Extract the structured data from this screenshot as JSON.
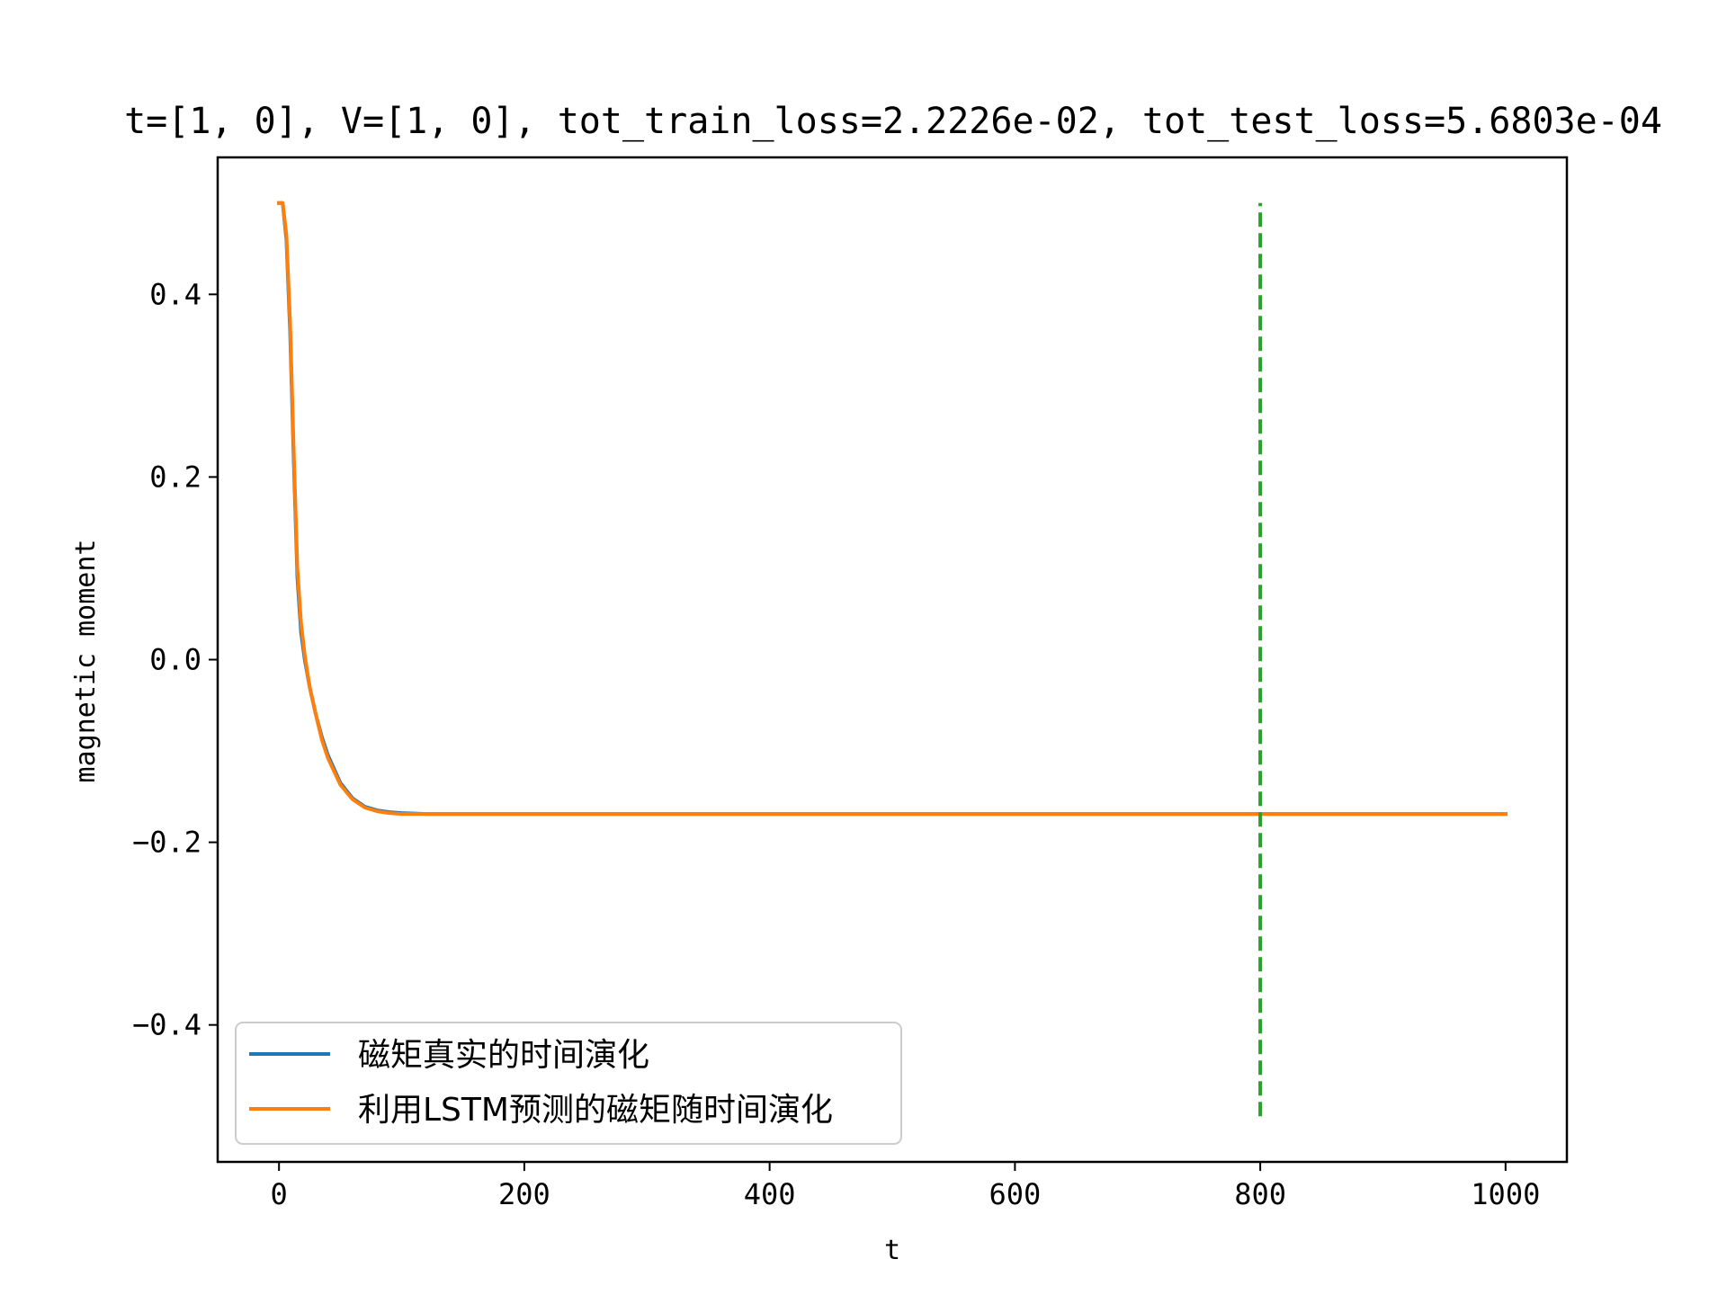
{
  "chart_data": {
    "type": "line",
    "title": "t=[1, 0], V=[1, 0], tot_train_loss=2.2226e-02, tot_test_loss=5.6803e-04",
    "xlabel": "t",
    "ylabel": "magnetic moment",
    "xlim": [
      -50,
      1050
    ],
    "ylim": [
      -0.55,
      0.55
    ],
    "xticks": [
      0,
      200,
      400,
      600,
      800,
      1000
    ],
    "yticks": [
      -0.4,
      -0.2,
      0.0,
      0.2,
      0.4
    ],
    "xtick_labels": [
      "0",
      "200",
      "400",
      "600",
      "800",
      "1000"
    ],
    "ytick_labels": [
      "−0.4",
      "−0.2",
      "0.0",
      "0.2",
      "0.4"
    ],
    "grid": false,
    "legend_position": "lower-left",
    "series": [
      {
        "name": "磁矩真实的时间演化",
        "color": "#1f77b4",
        "x": [
          0,
          3,
          6,
          9,
          12,
          15,
          18,
          21,
          25,
          30,
          35,
          40,
          50,
          60,
          70,
          80,
          90,
          100,
          120,
          150,
          200,
          300,
          500,
          800,
          1000
        ],
        "y": [
          0.5,
          0.5,
          0.46,
          0.36,
          0.22,
          0.09,
          0.03,
          0.0,
          -0.03,
          -0.06,
          -0.085,
          -0.105,
          -0.135,
          -0.152,
          -0.161,
          -0.165,
          -0.167,
          -0.168,
          -0.169,
          -0.169,
          -0.169,
          -0.169,
          -0.169,
          -0.169,
          -0.169
        ]
      },
      {
        "name": "利用LSTM预测的磁矩随时间演化",
        "color": "#ff7f0e",
        "x": [
          0,
          3,
          6,
          9,
          12,
          15,
          18,
          21,
          25,
          30,
          35,
          40,
          50,
          60,
          70,
          80,
          90,
          100,
          120,
          150,
          200,
          300,
          500,
          800,
          1000
        ],
        "y": [
          0.5,
          0.5,
          0.465,
          0.37,
          0.23,
          0.1,
          0.04,
          0.005,
          -0.03,
          -0.06,
          -0.088,
          -0.108,
          -0.137,
          -0.153,
          -0.162,
          -0.166,
          -0.168,
          -0.169,
          -0.169,
          -0.169,
          -0.169,
          -0.169,
          -0.169,
          -0.169,
          -0.169
        ]
      }
    ],
    "vlines": [
      {
        "x": 800,
        "ymin": -0.5,
        "ymax": 0.5,
        "color": "#2ca02c",
        "style": "dashed"
      }
    ]
  }
}
